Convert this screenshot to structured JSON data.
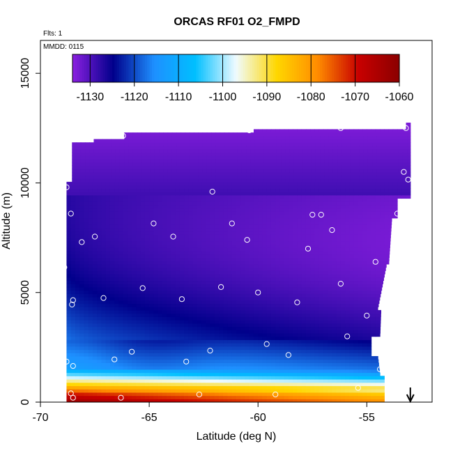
{
  "chart_data": {
    "type": "heatmap",
    "title": "ORCAS RF01 O2_FMPD",
    "flights_label": "Flts: 1",
    "date_label": "MMDD: 0115",
    "xlabel": "Latitude (deg N)",
    "ylabel": "Altitude (m)",
    "xlim": [
      -70,
      -52
    ],
    "ylim": [
      0,
      16500
    ],
    "x_ticks": [
      -70,
      -65,
      -60,
      -55
    ],
    "x_tick_labels": [
      "-70",
      "-65",
      "-60",
      "-55"
    ],
    "y_ticks": [
      0,
      5000,
      10000,
      15000
    ],
    "y_tick_labels": [
      "0",
      "5000",
      "10000",
      "15000"
    ],
    "colorbar": {
      "range": [
        -1134,
        -1060
      ],
      "ticks": [
        -1130,
        -1120,
        -1110,
        -1100,
        -1090,
        -1080,
        -1070,
        -1060
      ],
      "tick_labels": [
        "-1130",
        "-1120",
        "-1110",
        "-1100",
        "-1090",
        "-1080",
        "-1070",
        "-1060"
      ],
      "colors": [
        "#8b1fe0",
        "#00008b",
        "#1e90ff",
        "#00bfff",
        "#f0fbff",
        "#ffd700",
        "#ff8c00",
        "#c80000",
        "#8b0000"
      ]
    },
    "field": {
      "lat_range": [
        -68.8,
        -53
      ],
      "top_altitude": 12500,
      "surface_values": [
        -1062,
        -1070,
        -1085,
        -1098,
        -1110
      ]
    },
    "observations": [
      {
        "lat": -68.7,
        "alt": 11650
      },
      {
        "lat": -66.2,
        "alt": 12150
      },
      {
        "lat": -60.4,
        "alt": 12400
      },
      {
        "lat": -56.2,
        "alt": 12500
      },
      {
        "lat": -53.2,
        "alt": 12500
      },
      {
        "lat": -68.8,
        "alt": 9800
      },
      {
        "lat": -62.1,
        "alt": 9600
      },
      {
        "lat": -53.3,
        "alt": 10500
      },
      {
        "lat": -53.1,
        "alt": 10150
      },
      {
        "lat": -68.6,
        "alt": 8600
      },
      {
        "lat": -57.5,
        "alt": 8550
      },
      {
        "lat": -57.1,
        "alt": 8550
      },
      {
        "lat": -53.6,
        "alt": 8600
      },
      {
        "lat": -53.4,
        "alt": 8600
      },
      {
        "lat": -64.8,
        "alt": 8150
      },
      {
        "lat": -61.2,
        "alt": 8150
      },
      {
        "lat": -56.6,
        "alt": 7850
      },
      {
        "lat": -67.5,
        "alt": 7550
      },
      {
        "lat": -68.1,
        "alt": 7300
      },
      {
        "lat": -63.9,
        "alt": 7550
      },
      {
        "lat": -60.5,
        "alt": 7400
      },
      {
        "lat": -57.7,
        "alt": 7000
      },
      {
        "lat": -54.6,
        "alt": 6400
      },
      {
        "lat": -68.9,
        "alt": 6150
      },
      {
        "lat": -65.3,
        "alt": 5200
      },
      {
        "lat": -61.7,
        "alt": 5250
      },
      {
        "lat": -60.0,
        "alt": 5000
      },
      {
        "lat": -56.2,
        "alt": 5400
      },
      {
        "lat": -67.1,
        "alt": 4750
      },
      {
        "lat": -68.5,
        "alt": 4650
      },
      {
        "lat": -63.5,
        "alt": 4700
      },
      {
        "lat": -58.2,
        "alt": 4550
      },
      {
        "lat": -68.55,
        "alt": 4450
      },
      {
        "lat": -55.0,
        "alt": 3950
      },
      {
        "lat": -55.9,
        "alt": 3000
      },
      {
        "lat": -59.6,
        "alt": 2650
      },
      {
        "lat": -65.8,
        "alt": 2300
      },
      {
        "lat": -62.2,
        "alt": 2350
      },
      {
        "lat": -58.6,
        "alt": 2150
      },
      {
        "lat": -66.6,
        "alt": 1950
      },
      {
        "lat": -63.3,
        "alt": 1850
      },
      {
        "lat": -68.8,
        "alt": 1850
      },
      {
        "lat": -68.5,
        "alt": 1650
      },
      {
        "lat": -54.4,
        "alt": 1500
      },
      {
        "lat": -55.4,
        "alt": 650
      },
      {
        "lat": -68.6,
        "alt": 400
      },
      {
        "lat": -62.7,
        "alt": 350
      },
      {
        "lat": -59.2,
        "alt": 350
      },
      {
        "lat": -68.5,
        "alt": 200
      },
      {
        "lat": -66.3,
        "alt": 200
      }
    ],
    "arrow_lat": -53
  }
}
